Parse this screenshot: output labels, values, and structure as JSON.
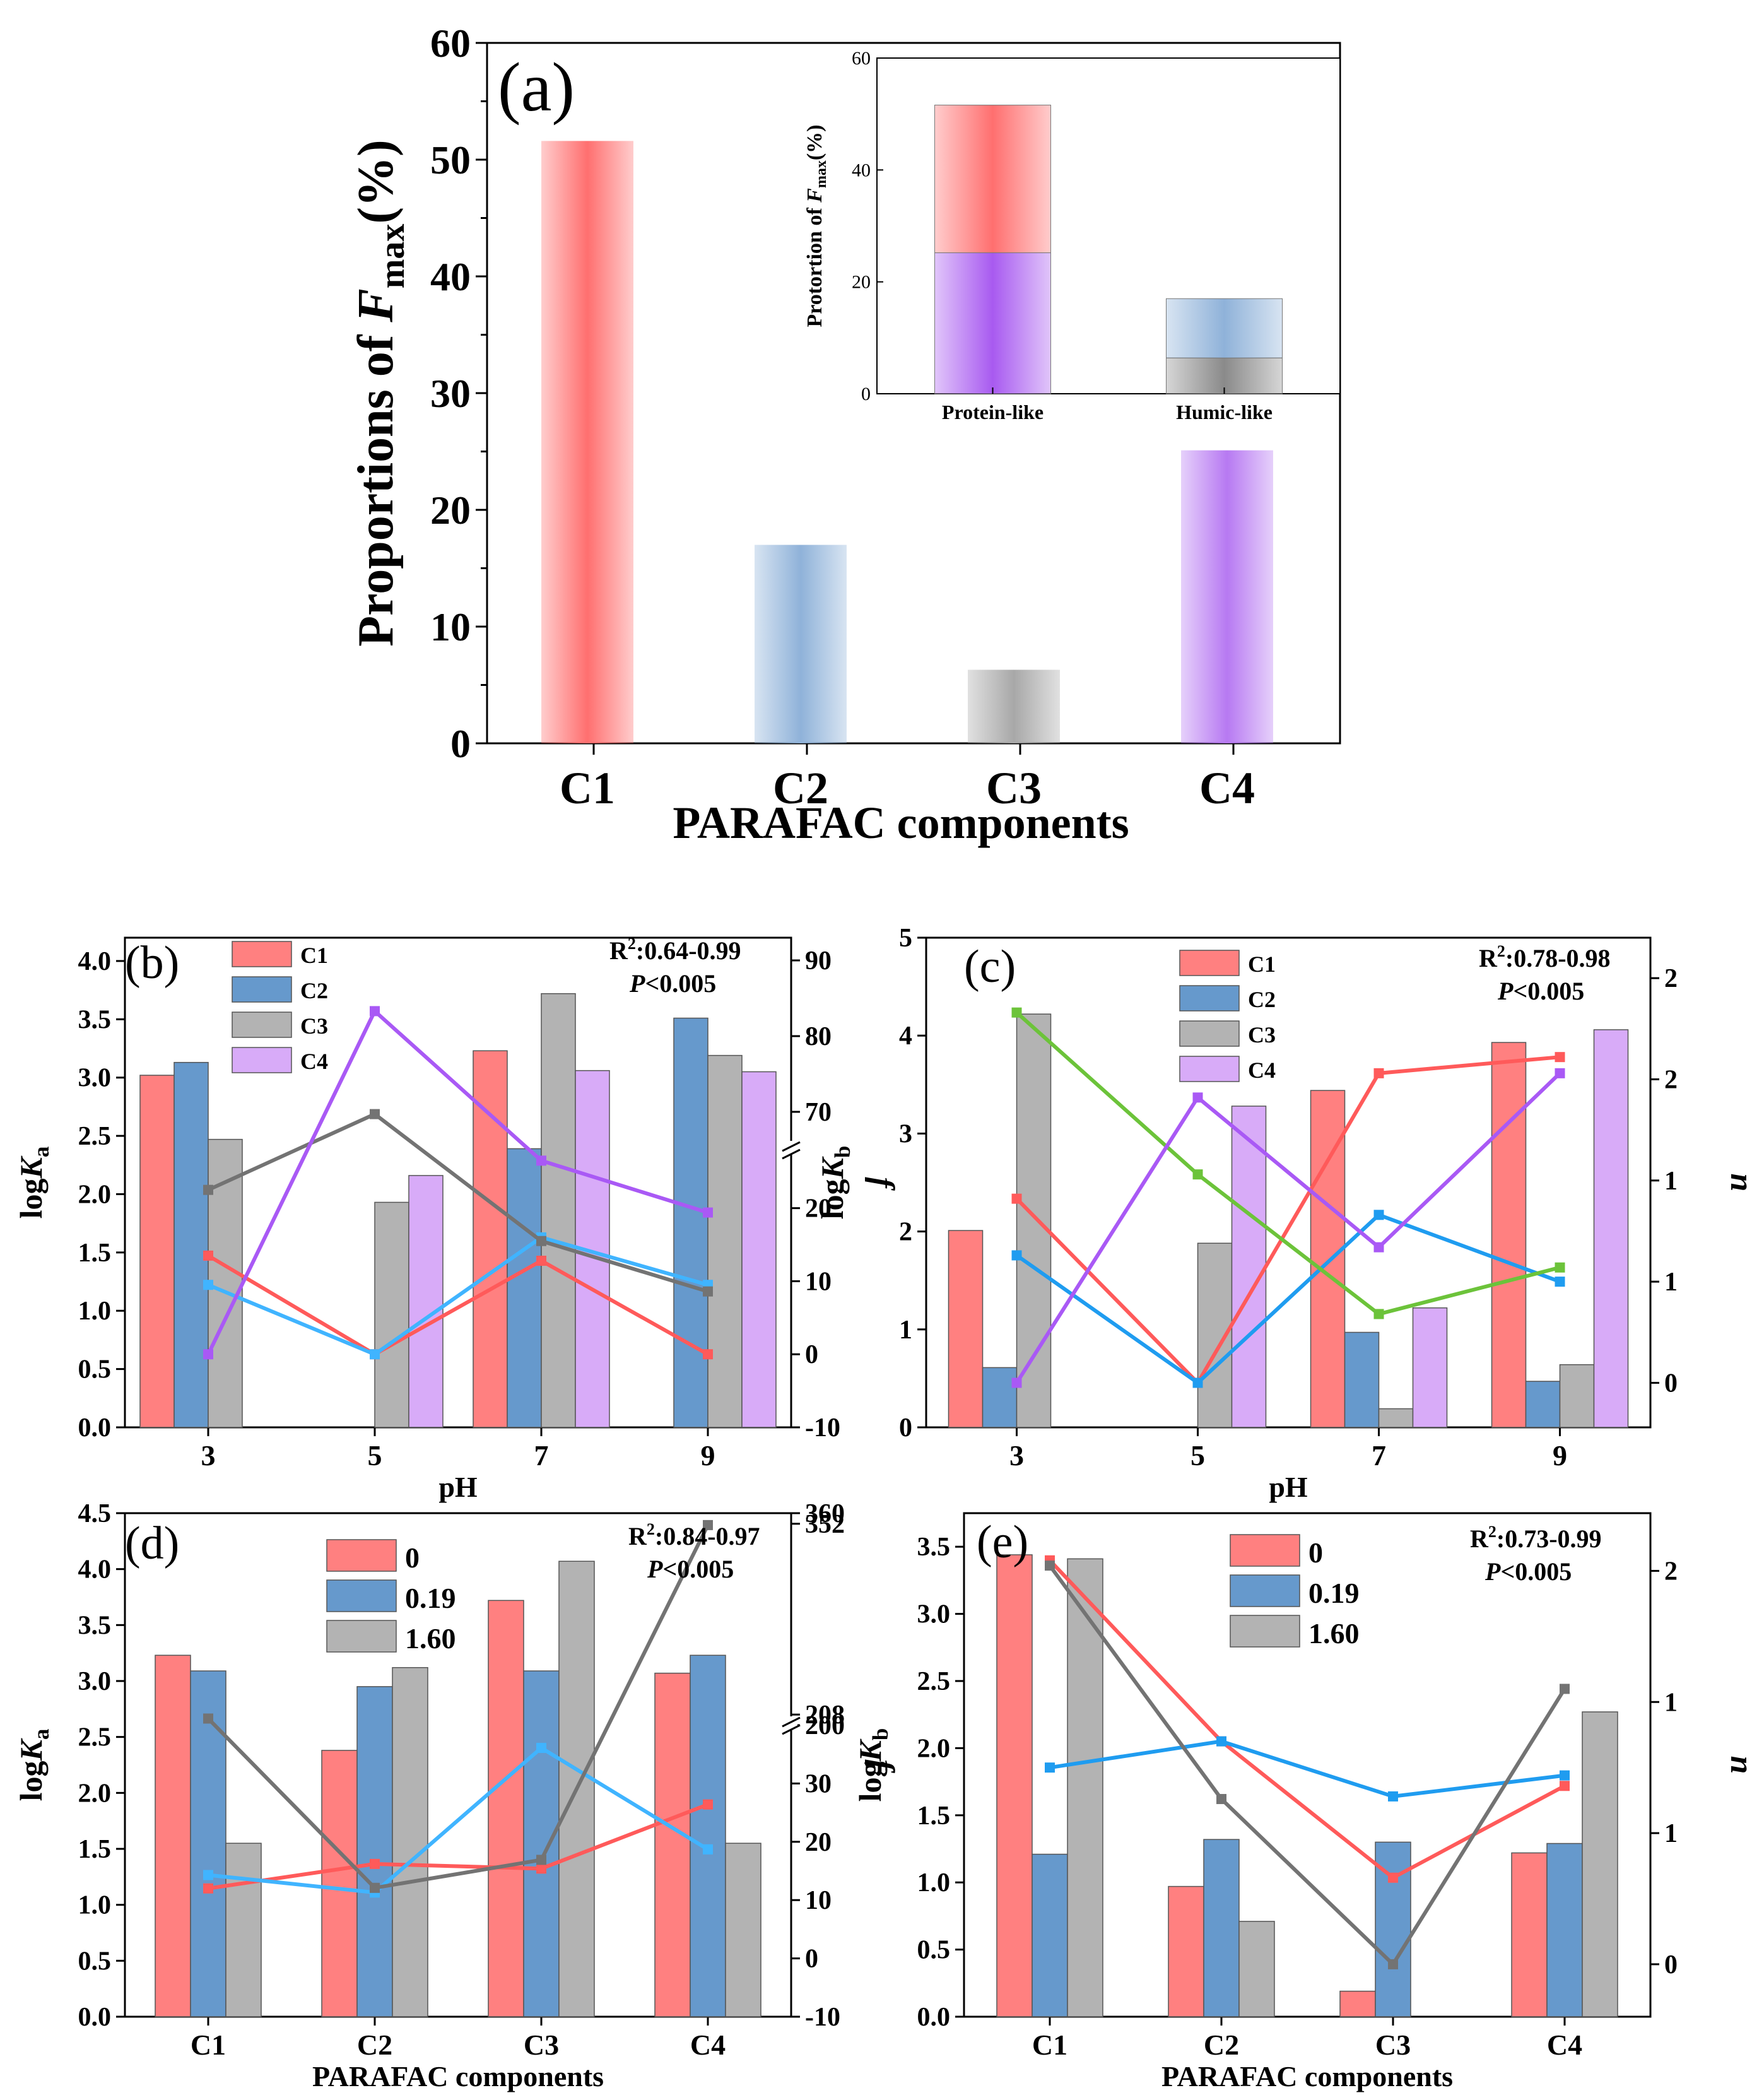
{
  "chart_data": [
    {
      "id": "a",
      "type": "bar",
      "panel_label": "(a)",
      "xlabel": "PARAFAC components",
      "ylabel_prefix": "Proportions of ",
      "ylabel_var": "F",
      "ylabel_sub": "max",
      "ylabel_suffix": "(%)",
      "ylim": [
        0,
        60
      ],
      "yticks": [
        0,
        10,
        20,
        30,
        40,
        50,
        60
      ],
      "categories": [
        "C1",
        "C2",
        "C3",
        "C4"
      ],
      "values": [
        51.6,
        17.0,
        6.3,
        25.1
      ],
      "colors": [
        "#ff6f6f",
        "#8fb2d9",
        "#a8a8a8",
        "#b779f2"
      ],
      "inset": {
        "type": "stacked_bar",
        "ylabel_prefix": "Protortion of ",
        "ylabel_var": "F",
        "ylabel_sub": "max",
        "ylabel_suffix": "(%)",
        "ylim": [
          0,
          60
        ],
        "yticks": [
          0,
          20,
          40,
          60
        ],
        "categories": [
          "Protein-like",
          "Humic-like"
        ],
        "series": [
          {
            "name": "C4",
            "values": [
              25.2,
              0
            ],
            "color": "#a85af0"
          },
          {
            "name": "C1",
            "values": [
              26.4,
              0
            ],
            "color": "#ff6f6f"
          },
          {
            "name": "C3",
            "values": [
              0,
              6.4
            ],
            "color": "#8a8a8a"
          },
          {
            "name": "C2",
            "values": [
              0,
              10.6
            ],
            "color": "#8fb2d9"
          }
        ]
      }
    },
    {
      "id": "b",
      "type": "bar+line",
      "panel_label": "(b)",
      "xlabel": "pH",
      "ylabel_prefix": "log",
      "ylabel_var": "K",
      "ylabel_sub": "a",
      "y2label": "f",
      "categories": [
        "3",
        "5",
        "7",
        "9"
      ],
      "ylim": [
        0,
        4.2
      ],
      "yticks": [
        0.0,
        0.5,
        1.0,
        1.5,
        2.0,
        2.5,
        3.0,
        3.5,
        4.0
      ],
      "y2_lower": {
        "range": [
          -10,
          28
        ],
        "ticks": [
          -10,
          0,
          10,
          20
        ]
      },
      "y2_upper": {
        "range": [
          65,
          93
        ],
        "ticks": [
          70,
          80,
          90
        ]
      },
      "y2_break_value": 28,
      "annotation": {
        "r2_prefix": "R",
        "r2_sup": "2",
        "r2_value": ":0.64-0.99",
        "p_var": "P",
        "p_value": "<0.005"
      },
      "bar_series": [
        {
          "name": "C1",
          "values": [
            3.02,
            null,
            3.23,
            null
          ],
          "color": "#ff8080"
        },
        {
          "name": "C2",
          "values": [
            3.13,
            null,
            2.39,
            3.51
          ],
          "color": "#6699cc"
        },
        {
          "name": "C3",
          "values": [
            2.47,
            1.93,
            3.72,
            3.19
          ],
          "color": "#b3b3b3"
        },
        {
          "name": "C4",
          "values": [
            null,
            2.16,
            3.06,
            3.05
          ],
          "color": "#d8abf8"
        }
      ],
      "line_series": [
        {
          "name": "C1",
          "values": [
            13.5,
            0,
            12.8,
            0
          ],
          "color": "#ff5a5a"
        },
        {
          "name": "C2",
          "values": [
            9.5,
            0,
            16.0,
            9.5
          ],
          "color": "#40b4ff"
        },
        {
          "name": "C3",
          "values": [
            22.5,
            69.7,
            15.5,
            8.6
          ],
          "color": "#737373"
        },
        {
          "name": "C4",
          "values": [
            0,
            83.3,
            26.5,
            19.4
          ],
          "color": "#a959f5"
        }
      ]
    },
    {
      "id": "c",
      "type": "bar+line",
      "panel_label": "(c)",
      "xlabel": "pH",
      "ylabel_prefix": "log",
      "ylabel_var": "K",
      "ylabel_sub": "b",
      "y2label": "n",
      "categories": [
        "3",
        "5",
        "7",
        "9"
      ],
      "ylim": [
        0,
        5
      ],
      "yticks": [
        0,
        1,
        2,
        3,
        4,
        5
      ],
      "y2lim": [
        -0.22,
        2.2
      ],
      "y2ticks": [
        0.0,
        0.5,
        1.0,
        1.5,
        2.0
      ],
      "annotation": {
        "r2_prefix": "R",
        "r2_sup": "2",
        "r2_value": ":0.78-0.98",
        "p_var": "P",
        "p_value": "<0.005"
      },
      "bar_series": [
        {
          "name": "C1",
          "values": [
            2.01,
            null,
            3.44,
            3.93
          ],
          "color": "#ff8080"
        },
        {
          "name": "C2",
          "values": [
            0.61,
            null,
            0.97,
            0.47
          ],
          "color": "#6699cc"
        },
        {
          "name": "C3",
          "values": [
            4.22,
            1.88,
            0.19,
            0.64
          ],
          "color": "#b3b3b3"
        },
        {
          "name": "C4",
          "values": [
            null,
            3.28,
            1.22,
            4.06
          ],
          "color": "#d8abf8"
        }
      ],
      "line_series": [
        {
          "name": "C1",
          "values": [
            0.91,
            0.0,
            1.53,
            1.61
          ],
          "color": "#ff5a5a"
        },
        {
          "name": "C2",
          "values": [
            0.63,
            0.0,
            0.83,
            0.5
          ],
          "color": "#1f9cf0"
        },
        {
          "name": "C3",
          "values": [
            1.83,
            1.03,
            0.34,
            0.57
          ],
          "color": "#6cc33a"
        },
        {
          "name": "C4",
          "values": [
            0.0,
            1.41,
            0.67,
            1.53
          ],
          "color": "#a959f5"
        }
      ]
    },
    {
      "id": "d",
      "type": "bar+line",
      "panel_label": "(d)",
      "xlabel": "PARAFAC components",
      "ylabel_prefix": "log",
      "ylabel_var": "K",
      "ylabel_sub": "a",
      "y2label": "f",
      "categories": [
        "C1",
        "C2",
        "C3",
        "C4"
      ],
      "ylim": [
        0,
        4.5
      ],
      "yticks": [
        0.0,
        0.5,
        1.0,
        1.5,
        2.0,
        2.5,
        3.0,
        3.5,
        4.0,
        4.5
      ],
      "y2_lower": {
        "range": [
          -10,
          40
        ],
        "ticks": [
          -10,
          0,
          10,
          20,
          30
        ]
      },
      "y2_upper": {
        "range": [
          200,
          360
        ],
        "ticks": [
          200,
          208,
          352,
          360
        ]
      },
      "annotation": {
        "r2_prefix": "R",
        "r2_sup": "2",
        "r2_value": ":0.84-0.97",
        "p_var": "P",
        "p_value": "<0.005"
      },
      "bar_series": [
        {
          "name": "0",
          "values": [
            3.23,
            2.38,
            3.72,
            3.07
          ],
          "color": "#ff8080"
        },
        {
          "name": "0.19",
          "values": [
            3.09,
            2.95,
            3.09,
            3.23
          ],
          "color": "#6699cc"
        },
        {
          "name": "1.60",
          "values": [
            1.55,
            3.12,
            4.07,
            1.55
          ],
          "color": "#b3b3b3"
        }
      ],
      "line_series": [
        {
          "name": "0",
          "values": [
            12.0,
            16.2,
            15.4,
            26.4
          ],
          "color": "#ff5a5a"
        },
        {
          "name": "0.19",
          "values": [
            14.3,
            11.3,
            36.1,
            18.7
          ],
          "color": "#40b4ff"
        },
        {
          "name": "1.60",
          "values": [
            205,
            12.1,
            16.9,
            351
          ],
          "color": "#737373"
        }
      ]
    },
    {
      "id": "e",
      "type": "bar+line",
      "panel_label": "(e)",
      "xlabel": "PARAFAC components",
      "ylabel_prefix": "log",
      "ylabel_var": "K",
      "ylabel_sub": "b",
      "y2label": "n",
      "categories": [
        "C1",
        "C2",
        "C3",
        "C4"
      ],
      "ylim": [
        0,
        3.75
      ],
      "yticks": [
        0.0,
        0.5,
        1.0,
        1.5,
        2.0,
        2.5,
        3.0,
        3.5
      ],
      "y2lim": [
        -0.2,
        1.72
      ],
      "y2ticks": [
        0.0,
        0.5,
        1.0,
        1.5
      ],
      "annotation": {
        "r2_prefix": "R",
        "r2_sup": "2",
        "r2_value": ":0.73-0.99",
        "p_var": "P",
        "p_value": "<0.005"
      },
      "bar_series": [
        {
          "name": "0",
          "values": [
            3.44,
            0.97,
            0.19,
            1.22
          ],
          "color": "#ff8080"
        },
        {
          "name": "0.19",
          "values": [
            1.21,
            1.32,
            1.3,
            1.29
          ],
          "color": "#6699cc"
        },
        {
          "name": "1.60",
          "values": [
            3.41,
            0.71,
            null,
            2.27
          ],
          "color": "#b3b3b3"
        }
      ],
      "line_series": [
        {
          "name": "0",
          "values": [
            1.54,
            0.85,
            0.33,
            0.68
          ],
          "color": "#ff5a5a"
        },
        {
          "name": "0.19",
          "values": [
            0.75,
            0.85,
            0.64,
            0.72
          ],
          "color": "#1f9cf0"
        },
        {
          "name": "1.60",
          "values": [
            1.52,
            0.63,
            0.0,
            1.05
          ],
          "color": "#737373"
        }
      ]
    }
  ]
}
